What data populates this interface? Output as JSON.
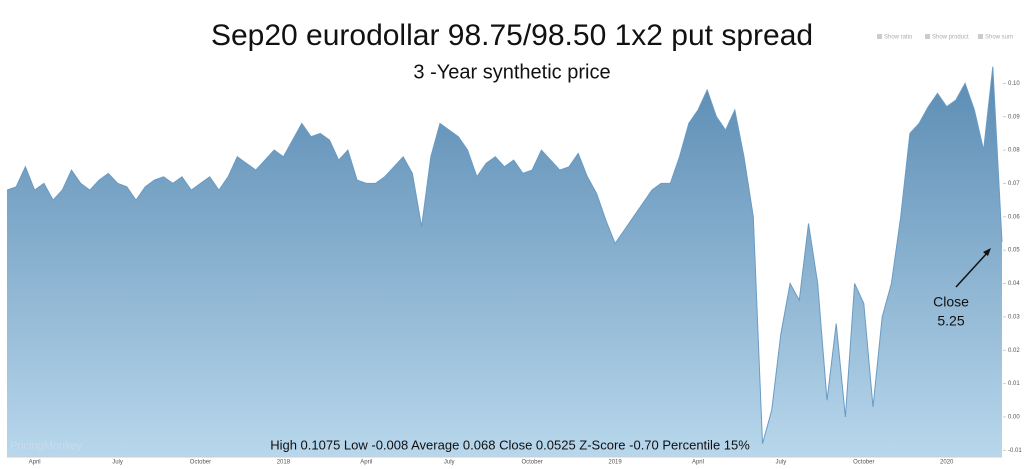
{
  "chart_data": {
    "type": "area",
    "title": "Sep20 eurodollar 98.75/98.50 1x2 put spread",
    "subtitle": "3 -Year synthetic price",
    "footer": "High 0.1075 Low -0.008 Average 0.068 Close 0.0525  Z-Score -0.70 Percentile 15%",
    "watermark": "PricingMonkey",
    "toggles": [
      "Show ratio",
      "Show product",
      "Show sum"
    ],
    "annotation": {
      "title": "Close",
      "value": "5.25"
    },
    "color": "#6a9bc3",
    "grid": false,
    "categories": [
      null,
      null,
      null,
      "April",
      null,
      null,
      null,
      null,
      null,
      null,
      null,
      null,
      "July",
      null,
      null,
      null,
      null,
      null,
      null,
      null,
      null,
      "October",
      null,
      null,
      null,
      null,
      null,
      null,
      null,
      null,
      "2018",
      null,
      null,
      null,
      null,
      null,
      null,
      null,
      null,
      "April",
      null,
      null,
      null,
      null,
      null,
      null,
      null,
      null,
      "July",
      null,
      null,
      null,
      null,
      null,
      null,
      null,
      null,
      "October",
      null,
      null,
      null,
      null,
      null,
      null,
      null,
      null,
      "2019",
      null,
      null,
      null,
      null,
      null,
      null,
      null,
      null,
      "April",
      null,
      null,
      null,
      null,
      null,
      null,
      null,
      null,
      "July",
      null,
      null,
      null,
      null,
      null,
      null,
      null,
      null,
      "October",
      null,
      null,
      null,
      null,
      null,
      null,
      null,
      null,
      "2020",
      null,
      null,
      null,
      null,
      null,
      null
    ],
    "values": [
      0.068,
      0.069,
      0.075,
      0.068,
      0.07,
      0.065,
      0.068,
      0.074,
      0.07,
      0.068,
      0.071,
      0.073,
      0.07,
      0.069,
      0.065,
      0.069,
      0.071,
      0.072,
      0.07,
      0.072,
      0.068,
      0.07,
      0.072,
      0.068,
      0.072,
      0.078,
      0.076,
      0.074,
      0.077,
      0.08,
      0.078,
      0.083,
      0.088,
      0.084,
      0.085,
      0.083,
      0.077,
      0.08,
      0.071,
      0.07,
      0.07,
      0.072,
      0.075,
      0.078,
      0.073,
      0.057,
      0.078,
      0.088,
      0.086,
      0.084,
      0.08,
      0.072,
      0.076,
      0.078,
      0.075,
      0.077,
      0.073,
      0.074,
      0.08,
      0.077,
      0.074,
      0.075,
      0.079,
      0.072,
      0.067,
      0.059,
      0.052,
      0.056,
      0.06,
      0.064,
      0.068,
      0.07,
      0.07,
      0.078,
      0.088,
      0.092,
      0.098,
      0.09,
      0.086,
      0.092,
      0.078,
      0.06,
      -0.008,
      0.002,
      0.025,
      0.04,
      0.035,
      0.058,
      0.04,
      0.005,
      0.028,
      0.0,
      0.04,
      0.034,
      0.003,
      0.03,
      0.04,
      0.06,
      0.085,
      0.088,
      0.093,
      0.097,
      0.093,
      0.095,
      0.1,
      0.092,
      0.08,
      0.105,
      0.0525
    ],
    "ylim": [
      -0.012,
      0.11
    ],
    "yticks": [
      -0.01,
      {
        "value": 0,
        "label": "0.00"
      },
      0.01,
      0.02,
      0.03,
      0.04,
      0.05,
      0.06,
      0.07,
      0.08,
      0.09,
      {
        "value": 0.1,
        "label": "0.10"
      }
    ]
  }
}
